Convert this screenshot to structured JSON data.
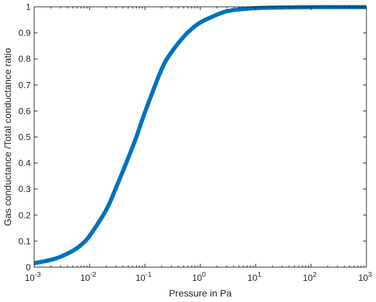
{
  "chart_data": {
    "type": "line",
    "title": "",
    "xlabel": "Pressure in Pa",
    "ylabel": "Gas conductance /Total conductance ratio",
    "xscale": "log",
    "xlim": [
      0.001,
      1000
    ],
    "ylim": [
      0,
      1
    ],
    "grid": false,
    "line_color": "#0072BD",
    "x_ticks": [
      {
        "value": 0.001,
        "base": "10",
        "exp": "-3"
      },
      {
        "value": 0.01,
        "base": "10",
        "exp": "-2"
      },
      {
        "value": 0.1,
        "base": "10",
        "exp": "-1"
      },
      {
        "value": 1,
        "base": "10",
        "exp": "0"
      },
      {
        "value": 10,
        "base": "10",
        "exp": "1"
      },
      {
        "value": 100,
        "base": "10",
        "exp": "2"
      },
      {
        "value": 1000,
        "base": "10",
        "exp": "3"
      }
    ],
    "y_ticks": [
      {
        "value": 0,
        "label": "0"
      },
      {
        "value": 0.1,
        "label": "0.1"
      },
      {
        "value": 0.2,
        "label": "0.2"
      },
      {
        "value": 0.3,
        "label": "0.3"
      },
      {
        "value": 0.4,
        "label": "0.4"
      },
      {
        "value": 0.5,
        "label": "0.5"
      },
      {
        "value": 0.6,
        "label": "0.6"
      },
      {
        "value": 0.7,
        "label": "0.7"
      },
      {
        "value": 0.8,
        "label": "0.8"
      },
      {
        "value": 0.9,
        "label": "0.9"
      },
      {
        "value": 1,
        "label": "1"
      }
    ],
    "series": [
      {
        "x": [
          0.001,
          0.002,
          0.003,
          0.005,
          0.007,
          0.01,
          0.02,
          0.03,
          0.05,
          0.07,
          0.1,
          0.2,
          0.3,
          0.5,
          0.7,
          1,
          2,
          3,
          5,
          10,
          20,
          100,
          1000
        ],
        "y": [
          0.015,
          0.028,
          0.04,
          0.063,
          0.085,
          0.12,
          0.22,
          0.305,
          0.42,
          0.5,
          0.595,
          0.76,
          0.825,
          0.885,
          0.915,
          0.94,
          0.97,
          0.983,
          0.99,
          0.995,
          0.997,
          0.999,
          0.999
        ]
      }
    ]
  }
}
